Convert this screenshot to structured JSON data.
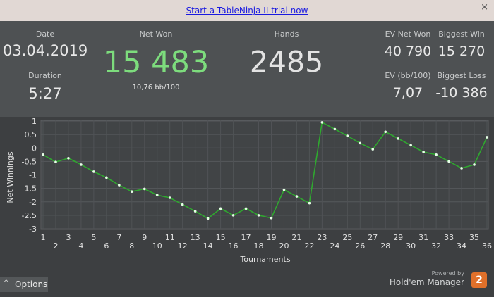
{
  "topbar": {
    "promo_link": "Start a TableNinja II trial now",
    "close_icon": "×"
  },
  "stats": {
    "date_label": "Date",
    "date_value": "03.04.2019",
    "duration_label": "Duration",
    "duration_value": "5:27",
    "net_won_label": "Net Won",
    "net_won_value": "15 483",
    "net_won_sub": "10,76 bb/100",
    "hands_label": "Hands",
    "hands_value": "2485",
    "ev_net_won_label": "EV Net Won",
    "ev_net_won_value": "40 790",
    "biggest_win_label": "Biggest Win",
    "biggest_win_value": "15 270",
    "ev_bb_label": "EV (bb/100)",
    "ev_bb_value": "7,07",
    "biggest_loss_label": "Biggest Loss",
    "biggest_loss_value": "-10 386"
  },
  "colors": {
    "net_won": "#7ddc7d",
    "line": "#2fa82f",
    "point": "#e8ffe8"
  },
  "chart_data": {
    "type": "line",
    "xlabel": "Tournaments",
    "ylabel": "Net Winnings",
    "ylim": [
      -3,
      1
    ],
    "yticks": [
      1,
      0.5,
      0,
      -0.5,
      -1,
      -1.5,
      -2,
      -2.5,
      -3
    ],
    "ytick_labels": [
      "1",
      "0.5",
      "0",
      "-0.5",
      "-1",
      "-1.5",
      "-2",
      "-2.5",
      "-3"
    ],
    "x": [
      1,
      2,
      3,
      4,
      5,
      6,
      7,
      8,
      9,
      10,
      11,
      12,
      13,
      14,
      15,
      16,
      17,
      18,
      19,
      20,
      21,
      22,
      23,
      24,
      25,
      26,
      27,
      28,
      29,
      30,
      31,
      32,
      33,
      34,
      35,
      36
    ],
    "y": [
      -0.25,
      -0.52,
      -0.38,
      -0.62,
      -0.88,
      -1.1,
      -1.38,
      -1.62,
      -1.52,
      -1.75,
      -1.85,
      -2.1,
      -2.35,
      -2.62,
      -2.25,
      -2.5,
      -2.25,
      -2.5,
      -2.6,
      -1.55,
      -1.8,
      -2.05,
      0.95,
      0.7,
      0.45,
      0.18,
      -0.05,
      0.6,
      0.35,
      0.1,
      -0.15,
      -0.25,
      -0.5,
      -0.75,
      -0.62,
      0.4
    ],
    "grid": true
  },
  "options": {
    "label": "Options",
    "caret_icon": "^"
  },
  "brand": {
    "powered_by": "Powered by",
    "name": "Hold'em Manager",
    "logo_text": "2"
  }
}
